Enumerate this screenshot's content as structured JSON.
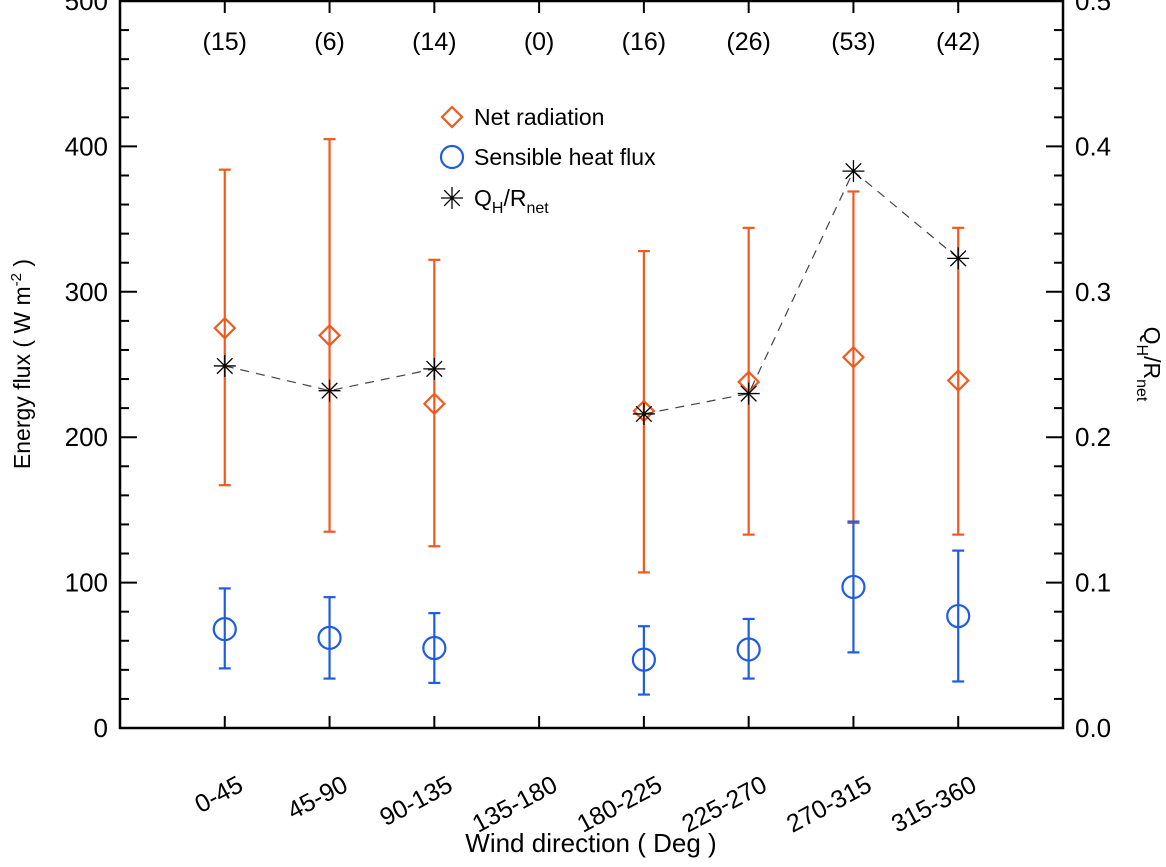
{
  "chart_data": {
    "type": "scatter",
    "xlabel": "Wind direction ( Deg )",
    "ylabel": "Energy flux ( W m",
    "ylabel_sup": "-2",
    "ylabel_end": " )",
    "y2label": "Q",
    "y2label_sub1": "H",
    "y2label_mid": "/R",
    "y2label_sub2": "net",
    "categories": [
      "0-45",
      "45-90",
      "90-135",
      "135-180",
      "180-225",
      "225-270",
      "270-315",
      "315-360"
    ],
    "counts": [
      "(15)",
      "(6)",
      "(14)",
      "(0)",
      "(16)",
      "(26)",
      "(53)",
      "(42)"
    ],
    "ylim": [
      0,
      500
    ],
    "yticks": [
      "0",
      "100",
      "200",
      "300",
      "400",
      "500"
    ],
    "y2lim": [
      0.0,
      0.5
    ],
    "y2ticks": [
      "0.0",
      "0.1",
      "0.2",
      "0.3",
      "0.4",
      "0.5"
    ],
    "grid": false,
    "legend_position": "top-center",
    "series": [
      {
        "name": "Net radiation",
        "marker": "diamond",
        "color": "#f05a1e",
        "axis": "left",
        "values": [
          275,
          270,
          223,
          null,
          218,
          238,
          255,
          239
        ],
        "err_high": [
          384,
          405,
          322,
          null,
          328,
          344,
          369,
          344
        ],
        "err_low": [
          167,
          135,
          125,
          null,
          107,
          133,
          141,
          133
        ]
      },
      {
        "name": "Sensible heat flux",
        "marker": "circle",
        "color": "#1f5de0",
        "axis": "left",
        "values": [
          68,
          62,
          55,
          null,
          47,
          54,
          97,
          77
        ],
        "err_high": [
          96,
          90,
          79,
          null,
          70,
          75,
          142,
          122
        ],
        "err_low": [
          41,
          34,
          31,
          null,
          23,
          34,
          52,
          32
        ]
      },
      {
        "name": "Q",
        "name_sub": "H",
        "name_mid": "/R",
        "name_sub2": "net",
        "marker": "asterisk",
        "color": "#000000",
        "axis": "right",
        "line": "dashed",
        "values": [
          0.249,
          0.232,
          0.247,
          null,
          0.216,
          0.23,
          0.383,
          0.323
        ]
      }
    ]
  }
}
